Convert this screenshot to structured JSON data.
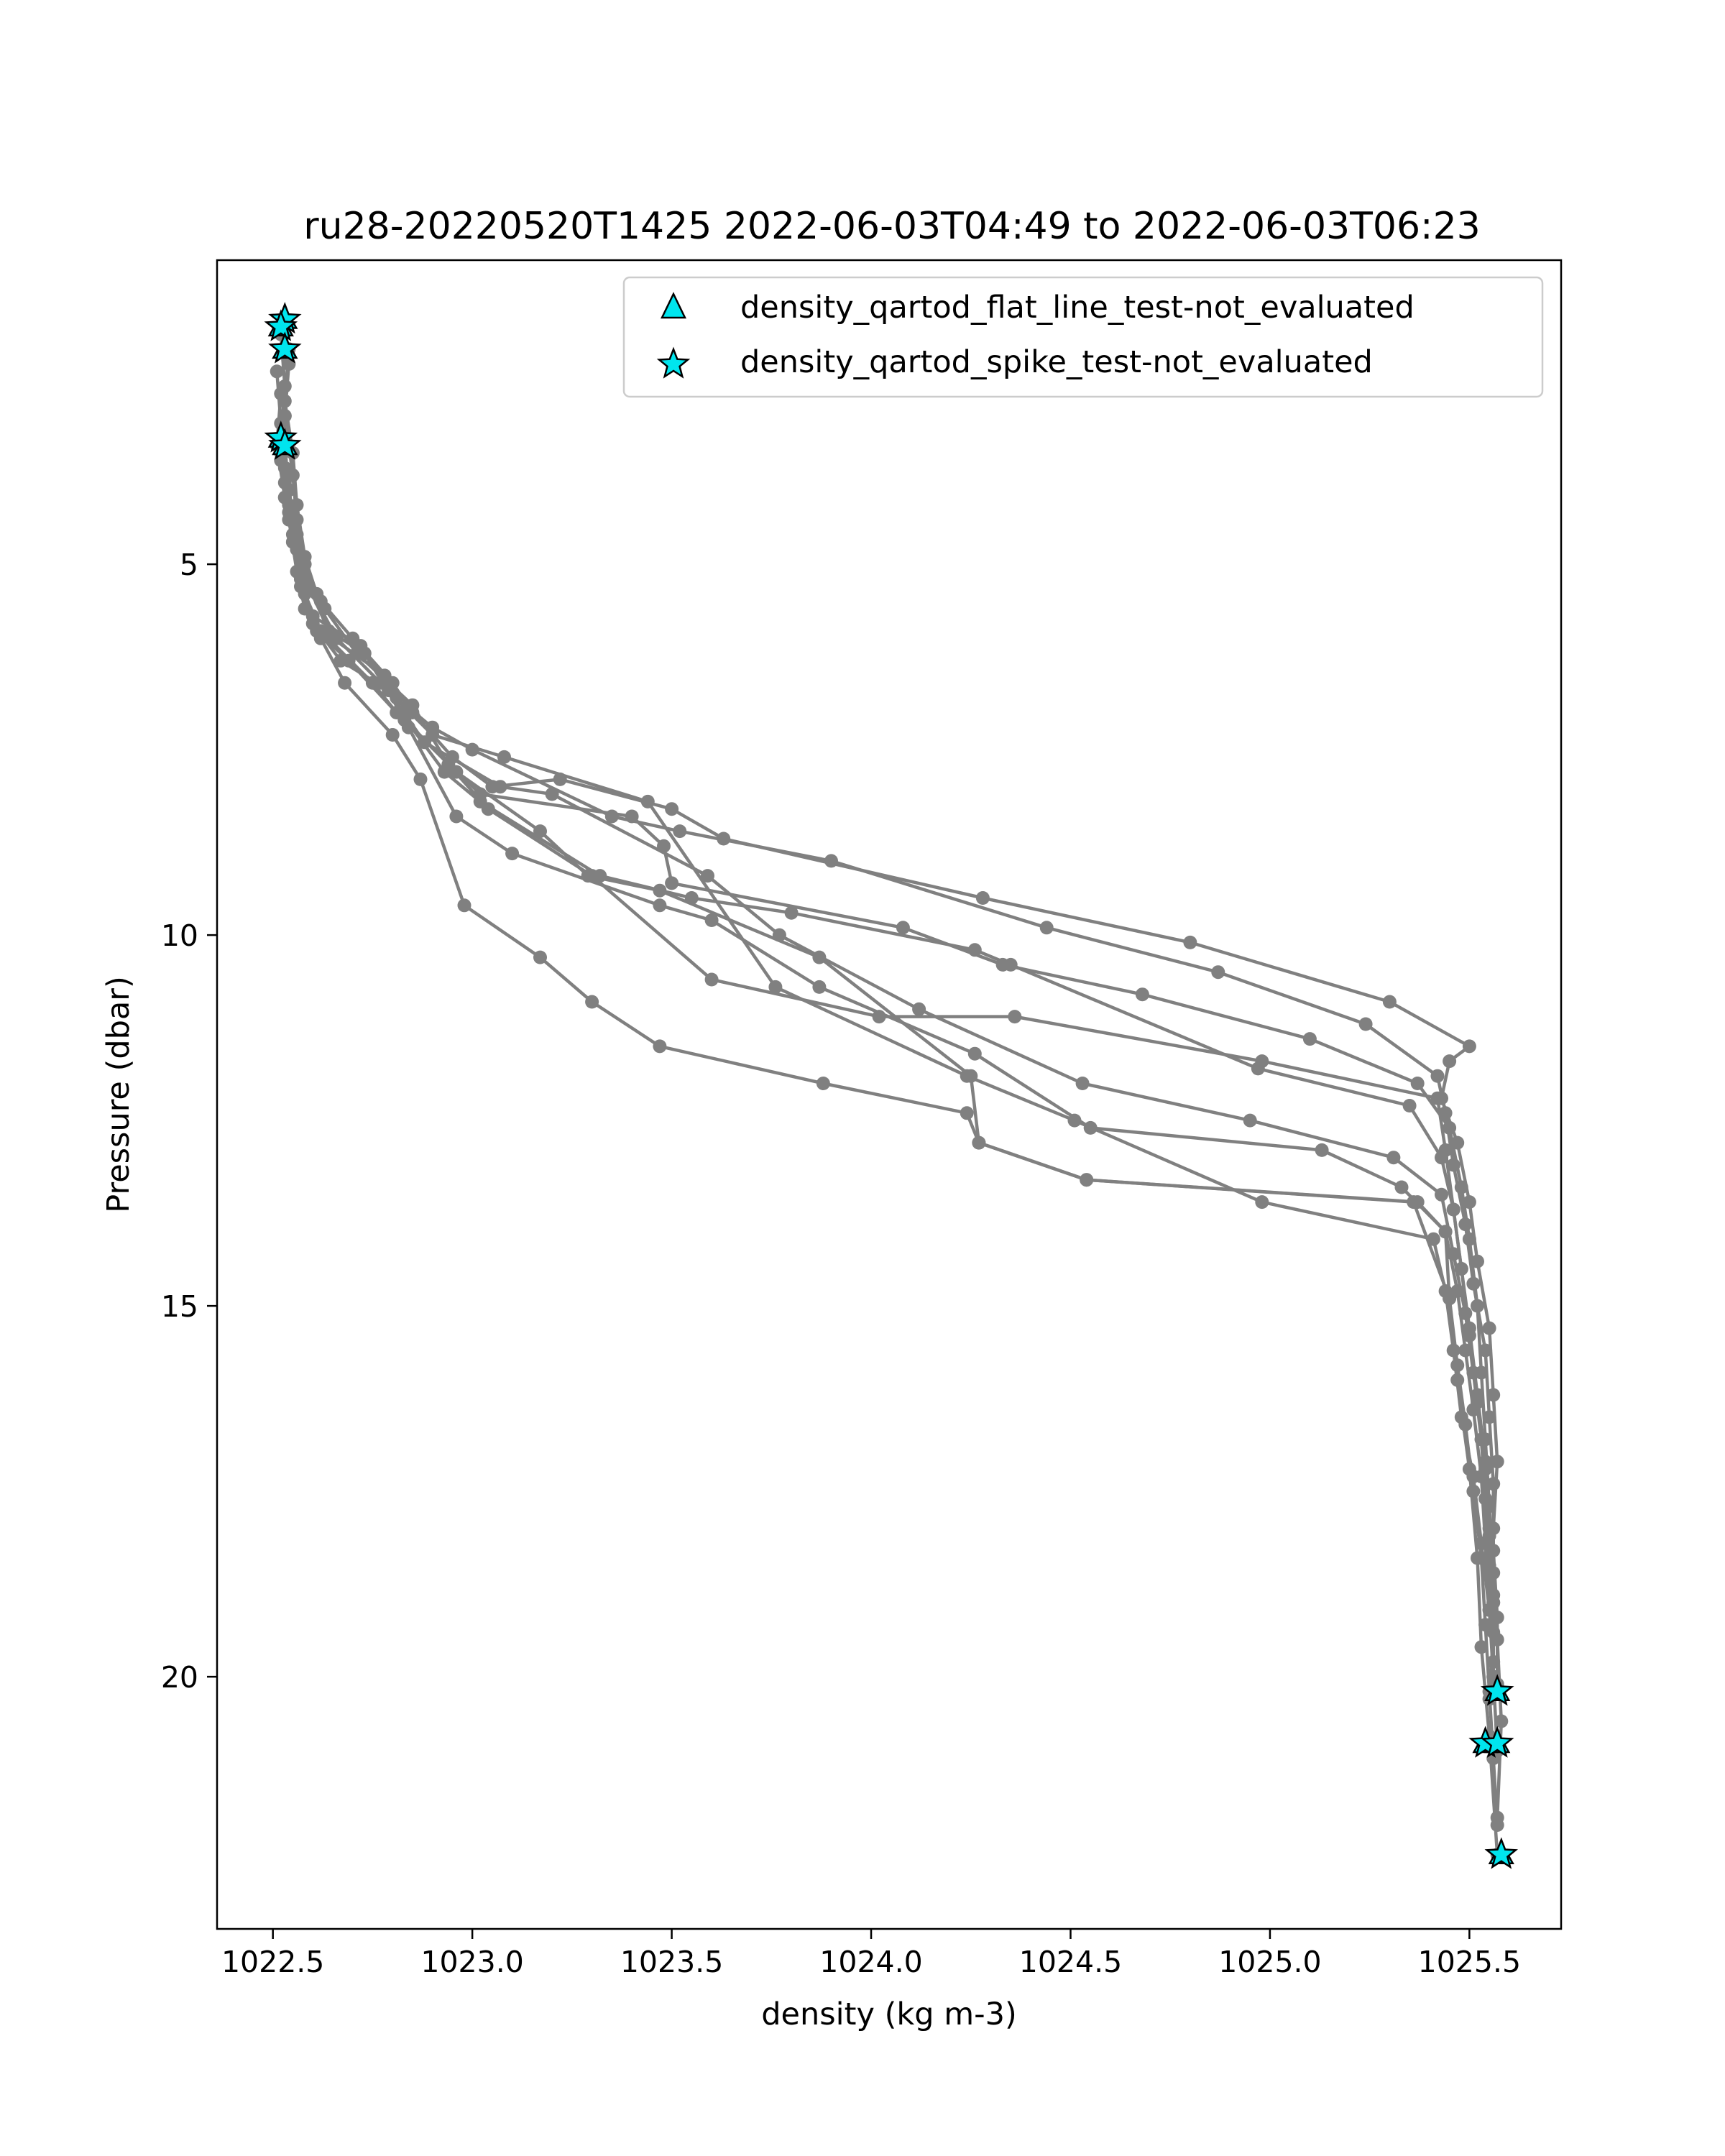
{
  "chart_data": {
    "type": "line",
    "title": "ru28-20220520T1425 2022-06-03T04:49 to 2022-06-03T06:23",
    "xlabel": "density (kg m-3)",
    "ylabel": "Pressure (dbar)",
    "xlim": [
      1022.36,
      1025.73
    ],
    "ylim": [
      23.4,
      0.9
    ],
    "y_inverted": true,
    "grid": false,
    "xticks": [
      {
        "value": 1022.5,
        "label": "1022.5"
      },
      {
        "value": 1023.0,
        "label": "1023.0"
      },
      {
        "value": 1023.5,
        "label": "1023.5"
      },
      {
        "value": 1024.0,
        "label": "1024.0"
      },
      {
        "value": 1024.5,
        "label": "1024.5"
      },
      {
        "value": 1025.0,
        "label": "1025.0"
      },
      {
        "value": 1025.5,
        "label": "1025.5"
      }
    ],
    "yticks": [
      {
        "value": 5,
        "label": "5"
      },
      {
        "value": 10,
        "label": "10"
      },
      {
        "value": 15,
        "label": "15"
      },
      {
        "value": 20,
        "label": "20"
      }
    ],
    "profile_color": "#808080",
    "marker_fill": "#00e5ee",
    "marker_edge": "#000000",
    "legend": {
      "placement": "top-right",
      "entries": [
        {
          "label": "density_qartod_flat_line_test-not_evaluated",
          "marker": "triangle"
        },
        {
          "label": "density_qartod_spike_test-not_evaluated",
          "marker": "star"
        }
      ]
    },
    "series": [
      {
        "x": [
          1022.53,
          1022.54,
          1022.53,
          1022.55,
          1022.56,
          1022.58,
          1022.62,
          1022.7,
          1022.8,
          1022.85,
          1022.95,
          1023.05,
          1023.22,
          1023.5,
          1023.63,
          1024.28,
          1024.8,
          1025.3,
          1025.5,
          1025.45,
          1025.43,
          1025.47,
          1025.5,
          1025.52,
          1025.55,
          1025.56,
          1025.57,
          1025.56,
          1025.56,
          1025.56,
          1025.57
        ],
        "y": [
          1.7,
          2.3,
          3.0,
          3.8,
          4.4,
          5.0,
          5.5,
          6.0,
          6.6,
          7.0,
          7.6,
          8.0,
          7.9,
          8.3,
          8.7,
          9.5,
          10.1,
          10.9,
          11.5,
          11.7,
          12.2,
          12.8,
          13.6,
          14.4,
          15.3,
          16.2,
          17.1,
          18.0,
          19.0,
          20.0,
          21.0
        ]
      },
      {
        "x": [
          1022.52,
          1022.53,
          1022.52,
          1022.54,
          1022.55,
          1022.57,
          1022.6,
          1022.72,
          1022.81,
          1022.9,
          1023.0,
          1023.35,
          1023.52,
          1023.9,
          1024.44,
          1024.87,
          1025.24,
          1025.42,
          1025.44,
          1025.46,
          1025.49,
          1025.51,
          1025.54,
          1025.55,
          1025.56,
          1025.56,
          1025.57,
          1025.57
        ],
        "y": [
          1.9,
          2.6,
          3.3,
          4.0,
          4.6,
          5.2,
          5.7,
          6.1,
          6.8,
          7.2,
          7.5,
          8.4,
          8.6,
          9.0,
          9.9,
          10.5,
          11.2,
          11.9,
          12.4,
          13.1,
          13.9,
          14.7,
          15.6,
          16.5,
          17.4,
          18.3,
          19.2,
          20.1
        ]
      },
      {
        "x": [
          1022.54,
          1022.53,
          1022.55,
          1022.56,
          1022.58,
          1022.61,
          1022.65,
          1022.78,
          1022.83,
          1023.02,
          1023.4,
          1023.48,
          1023.5,
          1024.08,
          1024.33,
          1024.68,
          1025.1,
          1025.37,
          1025.45,
          1025.48,
          1025.5,
          1025.52,
          1025.53,
          1025.54,
          1025.55,
          1025.56,
          1025.57,
          1025.58,
          1025.57
        ],
        "y": [
          2.1,
          2.8,
          3.5,
          4.2,
          4.9,
          5.4,
          6.0,
          6.5,
          7.1,
          8.1,
          8.4,
          8.8,
          9.3,
          9.9,
          10.4,
          10.8,
          11.4,
          12.0,
          12.6,
          13.4,
          14.1,
          15.0,
          15.9,
          16.8,
          17.7,
          18.6,
          19.5,
          20.6,
          21.9
        ]
      },
      {
        "x": [
          1022.51,
          1022.52,
          1022.53,
          1022.54,
          1022.56,
          1022.59,
          1022.64,
          1022.73,
          1022.82,
          1022.93,
          1023.02,
          1023.32,
          1023.55,
          1023.8,
          1024.26,
          1024.35,
          1024.97,
          1025.35,
          1025.43,
          1025.46,
          1025.48,
          1025.5,
          1025.52,
          1025.54,
          1025.55,
          1025.56,
          1025.56
        ],
        "y": [
          2.4,
          3.1,
          3.7,
          4.3,
          4.8,
          5.3,
          5.9,
          6.2,
          7.0,
          7.8,
          8.2,
          9.2,
          9.5,
          9.7,
          10.2,
          10.4,
          11.8,
          12.3,
          13.0,
          13.7,
          14.5,
          15.4,
          16.3,
          17.2,
          18.1,
          19.0,
          19.8
        ]
      },
      {
        "x": [
          1022.52,
          1022.51,
          1022.53,
          1022.55,
          1022.57,
          1022.6,
          1022.67,
          1022.79,
          1022.88,
          1023.07,
          1023.2,
          1023.59,
          1023.77,
          1024.12,
          1024.53,
          1024.95,
          1025.31,
          1025.43,
          1025.46,
          1025.49,
          1025.51,
          1025.53,
          1025.54,
          1025.55,
          1025.56,
          1025.55
        ],
        "y": [
          2.7,
          3.4,
          4.1,
          4.7,
          5.2,
          5.8,
          6.3,
          6.7,
          7.4,
          8.0,
          8.1,
          9.2,
          10.0,
          11.0,
          12.0,
          12.5,
          13.0,
          13.5,
          14.3,
          15.1,
          15.9,
          16.8,
          17.6,
          18.5,
          19.4,
          20.3
        ]
      },
      {
        "x": [
          1022.53,
          1022.52,
          1022.54,
          1022.56,
          1022.58,
          1022.62,
          1022.75,
          1022.84,
          1022.96,
          1023.1,
          1023.47,
          1023.6,
          1023.87,
          1024.26,
          1024.55,
          1025.13,
          1025.33,
          1025.44,
          1025.47,
          1025.49,
          1025.51,
          1025.53,
          1025.54,
          1025.55
        ],
        "y": [
          3.0,
          3.6,
          4.2,
          4.8,
          5.4,
          5.9,
          6.6,
          7.2,
          8.4,
          8.9,
          9.6,
          9.8,
          10.7,
          11.6,
          12.6,
          12.9,
          13.4,
          14.0,
          14.8,
          15.6,
          16.4,
          17.3,
          18.2,
          19.1
        ]
      },
      {
        "x": [
          1022.52,
          1022.53,
          1022.55,
          1022.57,
          1022.63,
          1022.71,
          1022.85,
          1022.94,
          1023.04,
          1023.3,
          1023.6,
          1024.02,
          1024.36,
          1024.98,
          1025.42,
          1025.44,
          1025.46,
          1025.48,
          1025.5,
          1025.52,
          1025.54,
          1025.55,
          1025.56
        ],
        "y": [
          3.3,
          3.9,
          4.4,
          5.1,
          5.6,
          6.2,
          6.9,
          7.7,
          8.3,
          9.2,
          10.6,
          11.1,
          11.1,
          11.7,
          12.2,
          12.9,
          13.7,
          14.5,
          15.3,
          16.2,
          17.1,
          18.0,
          18.9
        ]
      },
      {
        "x": [
          1022.53,
          1022.54,
          1022.56,
          1022.58,
          1022.66,
          1022.77,
          1022.9,
          1023.08,
          1023.44,
          1023.76,
          1024.24,
          1024.51,
          1024.98,
          1025.41,
          1025.44,
          1025.46,
          1025.48,
          1025.51,
          1025.53,
          1025.55,
          1025.56
        ],
        "y": [
          3.4,
          4.0,
          4.6,
          5.2,
          6.0,
          6.6,
          7.3,
          7.6,
          8.2,
          10.7,
          11.9,
          12.5,
          13.6,
          14.1,
          14.8,
          15.6,
          16.5,
          17.3,
          18.2,
          19.1,
          20.0
        ]
      },
      {
        "x": [
          1022.52,
          1022.53,
          1022.55,
          1022.57,
          1022.61,
          1022.69,
          1022.81,
          1022.96,
          1023.17,
          1023.29,
          1023.47,
          1023.87,
          1024.25,
          1024.27,
          1024.54,
          1025.37,
          1025.44,
          1025.45,
          1025.47,
          1025.49,
          1025.51,
          1025.53,
          1025.54,
          1025.55,
          1025.56,
          1025.57
        ],
        "y": [
          3.5,
          4.1,
          4.7,
          5.3,
          5.9,
          6.3,
          7.0,
          7.8,
          8.6,
          9.2,
          9.4,
          10.3,
          11.9,
          12.8,
          13.3,
          13.6,
          14.0,
          14.9,
          15.8,
          16.6,
          17.5,
          18.4,
          19.3,
          20.2,
          21.1,
          22.0
        ]
      },
      {
        "x": [
          1022.54,
          1022.56,
          1022.58,
          1022.62,
          1022.68,
          1022.8,
          1022.87,
          1022.98,
          1023.17,
          1023.3,
          1023.47,
          1023.88,
          1024.24,
          1024.27,
          1024.54,
          1025.36,
          1025.45,
          1025.47,
          1025.5,
          1025.52,
          1025.53,
          1025.55,
          1025.57
        ],
        "y": [
          4.4,
          5.1,
          5.6,
          6.0,
          6.6,
          7.3,
          7.9,
          9.6,
          10.3,
          10.9,
          11.5,
          12.0,
          12.4,
          12.8,
          13.3,
          13.6,
          14.9,
          16.0,
          17.2,
          18.4,
          19.6,
          20.8,
          22.4
        ]
      }
    ],
    "flagged_points": {
      "flat_line_test": [
        {
          "x": 1022.53,
          "y": 1.7
        },
        {
          "x": 1022.52,
          "y": 1.8
        },
        {
          "x": 1022.53,
          "y": 2.1
        },
        {
          "x": 1022.52,
          "y": 3.3
        },
        {
          "x": 1022.53,
          "y": 3.4
        },
        {
          "x": 1025.57,
          "y": 20.2
        },
        {
          "x": 1025.54,
          "y": 20.9
        },
        {
          "x": 1025.57,
          "y": 20.9
        },
        {
          "x": 1025.58,
          "y": 22.4
        }
      ],
      "spike_test": [
        {
          "x": 1022.53,
          "y": 1.7
        },
        {
          "x": 1022.52,
          "y": 1.8
        },
        {
          "x": 1022.53,
          "y": 2.1
        },
        {
          "x": 1022.52,
          "y": 3.3
        },
        {
          "x": 1022.53,
          "y": 3.4
        },
        {
          "x": 1025.57,
          "y": 20.2
        },
        {
          "x": 1025.54,
          "y": 20.9
        },
        {
          "x": 1025.57,
          "y": 20.9
        },
        {
          "x": 1025.58,
          "y": 22.4
        }
      ]
    }
  }
}
